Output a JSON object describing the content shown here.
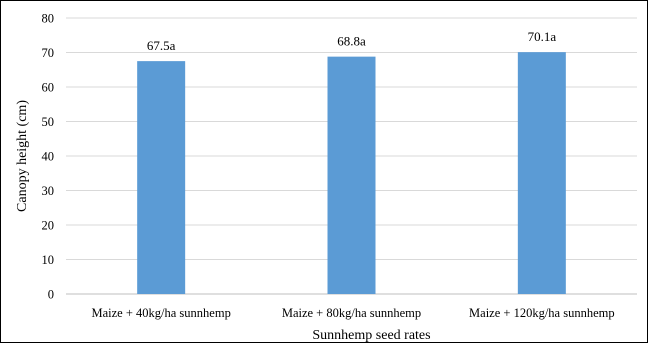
{
  "chart_data": {
    "type": "bar",
    "title": "",
    "xlabel": "Sunnhemp seed rates",
    "ylabel": "Canopy height  (cm)",
    "categories": [
      "Maize + 40kg/ha sunnhemp",
      "Maize + 80kg/ha sunnhemp",
      "Maize + 120kg/ha sunnhemp"
    ],
    "values": [
      67.5,
      68.8,
      70.1
    ],
    "data_labels": [
      "67.5a",
      "68.8a",
      "70.1a"
    ],
    "ylim": [
      0,
      80
    ],
    "yticks": [
      0,
      10,
      20,
      30,
      40,
      50,
      60,
      70,
      80
    ],
    "grid": true,
    "legend": "none",
    "colors": {
      "bar": "#5B9BD5",
      "grid": "#D9D9D9",
      "axis": "#BFBFBF",
      "frame": "#000000"
    }
  }
}
